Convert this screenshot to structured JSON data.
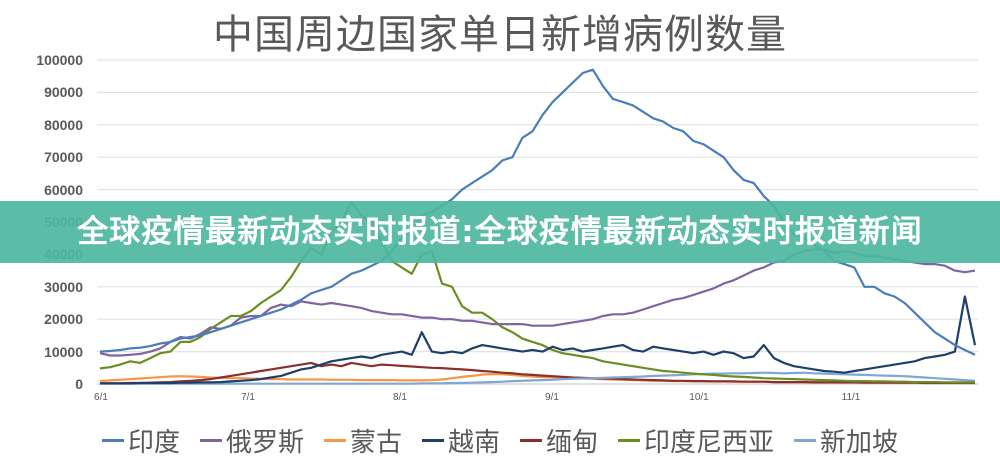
{
  "chart_data": {
    "type": "line",
    "title": "中国周边国家单日新增病例数量",
    "xlabel": "",
    "ylabel": "",
    "ylim": [
      0,
      100000
    ],
    "y_ticks": [
      "100000",
      "90000",
      "80000",
      "70000",
      "60000",
      "50000",
      "40000",
      "30000",
      "20000",
      "10000",
      "0"
    ],
    "x_ticks": [
      "6/1",
      "7/1",
      "8/1",
      "9/1",
      "10/1",
      "11/1"
    ],
    "grid": true,
    "legend_position": "bottom",
    "x_step_days": 2,
    "x_start": "6/1",
    "series": [
      {
        "name": "印度",
        "color": "#4a7ebb",
        "values": [
          10000,
          10200,
          10500,
          11000,
          11200,
          11700,
          12500,
          13000,
          14000,
          14500,
          15000,
          16000,
          17000,
          18000,
          19000,
          20000,
          21000,
          22000,
          23000,
          24500,
          26000,
          28000,
          29000,
          30000,
          32000,
          34000,
          35000,
          36500,
          38000,
          41000,
          45000,
          48000,
          52000,
          53000,
          55000,
          57000,
          60000,
          62000,
          64000,
          66000,
          69000,
          70000,
          76000,
          78000,
          83000,
          87000,
          90000,
          93000,
          96000,
          97000,
          92000,
          88000,
          87000,
          86000,
          84000,
          82000,
          81000,
          79000,
          78000,
          75000,
          74000,
          72000,
          70000,
          66000,
          63000,
          62000,
          58000,
          55000,
          50000,
          46000,
          45000,
          43000,
          41000,
          38000,
          37000,
          36000,
          30000,
          30000,
          28000,
          27000,
          25000,
          22000,
          19000,
          16000,
          14000,
          12000,
          10500,
          9000
        ]
      },
      {
        "name": "俄罗斯",
        "color": "#8064a2",
        "values": [
          9500,
          8800,
          8800,
          9000,
          9300,
          10000,
          11000,
          13000,
          14500,
          14000,
          15500,
          17500,
          17000,
          18000,
          20500,
          21000,
          21000,
          23500,
          24500,
          24000,
          25500,
          25000,
          24500,
          25000,
          24500,
          24000,
          23500,
          22500,
          22000,
          21500,
          21500,
          21000,
          20500,
          20500,
          20000,
          20000,
          19500,
          19500,
          19000,
          18500,
          18500,
          18500,
          18500,
          18000,
          18000,
          18000,
          18500,
          19000,
          19500,
          20000,
          21000,
          21500,
          21500,
          22000,
          23000,
          24000,
          25000,
          26000,
          26500,
          27500,
          28500,
          29500,
          31000,
          32000,
          33500,
          35000,
          36000,
          37500,
          38000,
          40000,
          41000,
          41500,
          41500,
          40500,
          41000,
          40500,
          39500,
          39500,
          39000,
          38500,
          38000,
          37500,
          37000,
          37000,
          36500,
          35000,
          34500,
          35000
        ]
      },
      {
        "name": "蒙古",
        "color": "#f79646",
        "values": [
          900,
          1100,
          1300,
          1500,
          1700,
          1900,
          2100,
          2300,
          2400,
          2300,
          2200,
          2000,
          1900,
          1800,
          1800,
          1700,
          1600,
          1500,
          1500,
          1400,
          1400,
          1400,
          1400,
          1300,
          1300,
          1300,
          1200,
          1200,
          1200,
          1200,
          1100,
          1100,
          1100,
          1200,
          1400,
          1800,
          2200,
          2500,
          2900,
          3100,
          3000,
          2800,
          2500,
          2300,
          2100,
          2000,
          1900,
          1800,
          1700,
          1600,
          1500,
          1400,
          1300,
          1200,
          1100,
          1000,
          1000,
          900,
          900,
          900,
          800,
          800,
          800,
          700,
          700,
          700,
          700,
          600,
          600,
          600,
          600,
          600,
          500,
          500,
          500,
          500,
          500,
          500,
          400,
          400,
          400,
          400,
          400,
          400,
          400,
          400,
          300,
          300
        ]
      },
      {
        "name": "越南",
        "color": "#1f3f6b",
        "values": [
          200,
          200,
          200,
          200,
          300,
          300,
          300,
          300,
          400,
          400,
          500,
          500,
          600,
          800,
          1000,
          1200,
          1500,
          2000,
          2500,
          3500,
          4500,
          5000,
          6000,
          7000,
          7500,
          8000,
          8500,
          8000,
          9000,
          9500,
          10000,
          9000,
          16000,
          10000,
          9500,
          10000,
          9500,
          11000,
          12000,
          11500,
          11000,
          10500,
          10000,
          10500,
          10000,
          11500,
          10500,
          11000,
          10000,
          10500,
          11000,
          11500,
          12000,
          10500,
          10000,
          11500,
          11000,
          10500,
          10000,
          9500,
          10000,
          9000,
          10000,
          9500,
          8000,
          8500,
          12000,
          8000,
          6500,
          5500,
          5000,
          4500,
          4000,
          3800,
          3500,
          4000,
          4500,
          5000,
          5500,
          6000,
          6500,
          7000,
          8000,
          8500,
          9000,
          10000,
          27000,
          12000
        ]
      },
      {
        "name": "缅甸",
        "color": "#8b2e2e",
        "values": [
          200,
          200,
          200,
          300,
          300,
          400,
          500,
          600,
          800,
          1000,
          1200,
          1500,
          2000,
          2500,
          3000,
          3500,
          4000,
          4500,
          5000,
          5500,
          6000,
          6500,
          5500,
          6000,
          5500,
          6500,
          6000,
          5500,
          6000,
          5800,
          5600,
          5400,
          5200,
          5000,
          4900,
          4700,
          4500,
          4300,
          4000,
          3800,
          3500,
          3300,
          3000,
          2800,
          2600,
          2400,
          2200,
          2000,
          1900,
          1800,
          1700,
          1600,
          1500,
          1400,
          1300,
          1200,
          1100,
          1000,
          1000,
          900,
          900,
          800,
          800,
          800,
          700,
          700,
          700,
          600,
          600,
          600,
          600,
          500,
          500,
          500,
          500,
          500,
          400,
          400,
          400,
          400,
          400,
          400,
          300,
          300,
          300,
          300,
          300,
          300
        ]
      },
      {
        "name": "印度尼西亚",
        "color": "#6b8e23",
        "values": [
          4800,
          5200,
          6000,
          7000,
          6500,
          8000,
          9500,
          10000,
          13000,
          13000,
          14500,
          17000,
          19000,
          21000,
          21000,
          22500,
          25000,
          27000,
          29000,
          33000,
          38000,
          42000,
          40000,
          47000,
          50000,
          56000,
          52000,
          50000,
          44000,
          38000,
          36000,
          34000,
          40000,
          41000,
          31000,
          30000,
          24000,
          22000,
          22000,
          20000,
          17500,
          16000,
          14000,
          13000,
          12000,
          10500,
          9500,
          9000,
          8500,
          8000,
          7000,
          6500,
          6000,
          5500,
          5000,
          4500,
          4000,
          3800,
          3500,
          3200,
          3000,
          2800,
          2500,
          2300,
          2200,
          2000,
          1800,
          1700,
          1600,
          1500,
          1400,
          1300,
          1200,
          1100,
          1000,
          900,
          900,
          800,
          800,
          700,
          700,
          600,
          600,
          600,
          500,
          500,
          500,
          500
        ]
      },
      {
        "name": "新加坡",
        "color": "#7fa7d4",
        "values": [
          100,
          100,
          100,
          100,
          100,
          100,
          100,
          100,
          100,
          100,
          100,
          100,
          100,
          100,
          100,
          100,
          100,
          100,
          100,
          100,
          100,
          100,
          100,
          100,
          100,
          100,
          100,
          100,
          100,
          100,
          100,
          100,
          200,
          200,
          200,
          300,
          300,
          400,
          500,
          600,
          700,
          900,
          1000,
          1100,
          1200,
          1300,
          1500,
          1600,
          1700,
          1800,
          1900,
          2000,
          2100,
          2200,
          2300,
          2500,
          2600,
          2700,
          2800,
          3000,
          3100,
          3200,
          3200,
          3300,
          3300,
          3400,
          3500,
          3400,
          3300,
          3400,
          3500,
          3300,
          3200,
          3100,
          3000,
          2900,
          2800,
          2700,
          2600,
          2500,
          2400,
          2200,
          2000,
          1800,
          1600,
          1400,
          1200,
          1000
        ]
      }
    ]
  },
  "banner": {
    "text": "全球疫情最新动态实时报道:全球疫情最新动态实时报道新闻"
  }
}
